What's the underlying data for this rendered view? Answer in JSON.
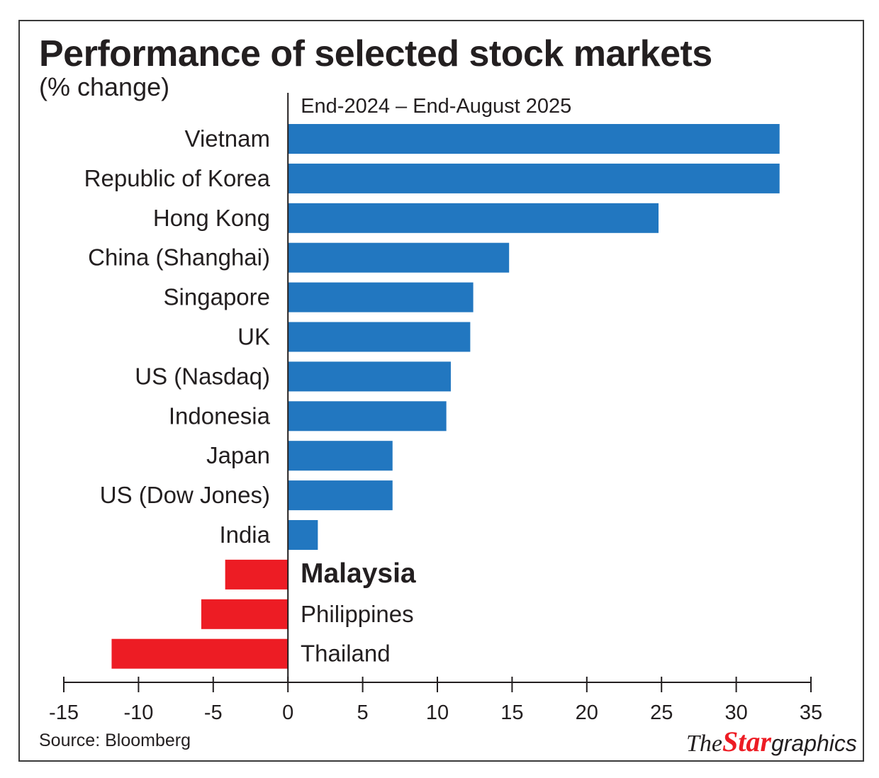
{
  "colors": {
    "positive": "#2277c0",
    "negative": "#ed1c24",
    "text": "#231f20",
    "axis": "#231f20"
  },
  "chart_data": {
    "type": "bar",
    "orientation": "horizontal",
    "title": "Performance of selected stock markets",
    "subtitle": "(% change)",
    "period_label": "End-2024 – End-August 2025",
    "categories": [
      "Vietnam",
      "Republic of Korea",
      "Hong Kong",
      "China (Shanghai)",
      "Singapore",
      "UK",
      "US (Nasdaq)",
      "Indonesia",
      "Japan",
      "US (Dow Jones)",
      "India",
      "Malaysia",
      "Philippines",
      "Thailand"
    ],
    "values": [
      32.9,
      32.9,
      24.8,
      14.8,
      12.4,
      12.2,
      10.9,
      10.6,
      7.0,
      7.0,
      2.0,
      -4.2,
      -5.8,
      -11.8
    ],
    "highlight": "Malaysia",
    "xlim": [
      -15,
      35
    ],
    "xticks": [
      "-15",
      "-10",
      "-5",
      "0",
      "5",
      "10",
      "15",
      "20",
      "25",
      "30",
      "35"
    ],
    "grid": false,
    "legend": "none"
  },
  "source": "Source: Bloomberg",
  "brand": {
    "the": "The",
    "star": "Star",
    "graphics": "graphics"
  }
}
